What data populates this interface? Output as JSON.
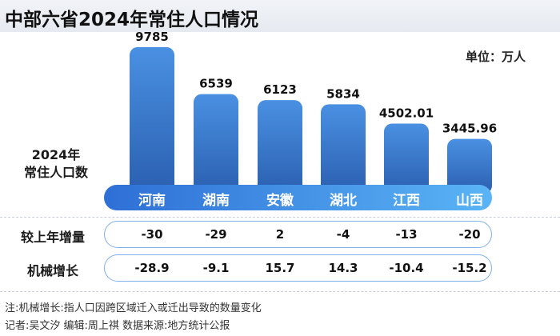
{
  "title": "中部六省2024年常住人口情况",
  "unit": "单位：万人",
  "y_axis_label": [
    "2024年",
    "常住人口数"
  ],
  "chart_data": {
    "type": "bar",
    "title": "中部六省2024年常住人口情况",
    "categories": [
      "河南",
      "湖南",
      "安徽",
      "湖北",
      "江西",
      "山西"
    ],
    "series": [
      {
        "values": [
          9785,
          6539,
          6123,
          5834,
          4502.01,
          3445.96
        ]
      }
    ],
    "value_labels": [
      "9785",
      "6539",
      "6123",
      "5834",
      "4502.01",
      "3445.96"
    ],
    "ylabel": "2024年常住人口数",
    "unit": "万人",
    "colors": {
      "bar_top": "#4a90e2",
      "bar_bottom": "#2b5fb0",
      "band_left": "#2e6fd6",
      "band_right": "#5ab4f5"
    }
  },
  "rows": [
    {
      "label": "较上年增量",
      "values": [
        "-30",
        "-29",
        "2",
        "-4",
        "-13",
        "-20"
      ]
    },
    {
      "label": "机械增长",
      "values": [
        "-28.9",
        "-9.1",
        "15.7",
        "14.3",
        "-10.4",
        "-15.2"
      ]
    }
  ],
  "notes": [
    "注:机械增长:指人口因跨区域迁入或迁出导致的数量变化",
    "记者:吴文汐  编辑:周上祺  数据来源:地方统计公报"
  ]
}
